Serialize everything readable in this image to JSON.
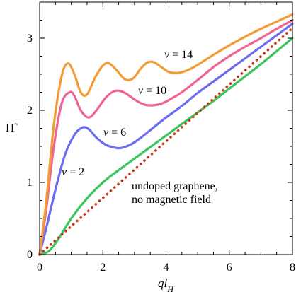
{
  "chart_data": {
    "type": "line",
    "xlabel": "ql_H",
    "xlabel_main": "ql",
    "xlabel_sub": "H",
    "ylabel": "Π̃",
    "xlim": [
      0,
      8
    ],
    "ylim": [
      0,
      3.5
    ],
    "xticks": [
      0,
      2,
      4,
      6,
      8
    ],
    "yticks": [
      0,
      1,
      2,
      3
    ],
    "x_tick_labels": [
      "0",
      "2",
      "4",
      "6",
      "8"
    ],
    "y_tick_labels": [
      "0",
      "1",
      "2",
      "3"
    ],
    "grid": false,
    "legend": "none",
    "series": [
      {
        "name": "ν = 14",
        "label_var": "ν",
        "label_eq": "= 14",
        "color": "#f39b35",
        "style": "solid",
        "x": [
          0,
          0.2,
          0.45,
          0.7,
          0.9,
          1.1,
          1.3,
          1.5,
          1.75,
          2.0,
          2.2,
          2.45,
          2.7,
          2.95,
          3.2,
          3.4,
          3.6,
          3.85,
          4.1,
          4.4,
          4.7,
          5.0,
          5.5,
          6.0,
          6.5,
          7.0,
          7.5,
          8.0
        ],
        "y": [
          0,
          0.7,
          1.8,
          2.48,
          2.65,
          2.5,
          2.25,
          2.22,
          2.45,
          2.62,
          2.65,
          2.55,
          2.43,
          2.44,
          2.58,
          2.66,
          2.67,
          2.6,
          2.53,
          2.52,
          2.56,
          2.63,
          2.77,
          2.9,
          3.02,
          3.13,
          3.23,
          3.33
        ]
      },
      {
        "name": "ν = 10",
        "label_var": "ν",
        "label_eq": "= 10",
        "color": "#f06392",
        "style": "solid",
        "x": [
          0,
          0.2,
          0.45,
          0.7,
          0.95,
          1.1,
          1.3,
          1.55,
          1.8,
          2.1,
          2.4,
          2.7,
          3.0,
          3.3,
          3.6,
          3.9,
          4.2,
          4.5,
          5.0,
          5.5,
          6.0,
          6.5,
          7.0,
          7.5,
          8.0
        ],
        "y": [
          0,
          0.6,
          1.5,
          2.1,
          2.25,
          2.2,
          2.0,
          1.9,
          2.0,
          2.18,
          2.27,
          2.24,
          2.15,
          2.08,
          2.07,
          2.1,
          2.17,
          2.25,
          2.42,
          2.6,
          2.75,
          2.88,
          3.0,
          3.13,
          3.25
        ]
      },
      {
        "name": "ν = 6",
        "label_var": "ν",
        "label_eq": "= 6",
        "color": "#6b6cf2",
        "style": "solid",
        "x": [
          0,
          0.2,
          0.5,
          0.8,
          1.1,
          1.35,
          1.55,
          1.8,
          2.1,
          2.4,
          2.6,
          2.9,
          3.2,
          3.6,
          4.0,
          4.5,
          5.0,
          5.5,
          6.0,
          6.5,
          7.0,
          7.5,
          8.0
        ],
        "y": [
          0,
          0.35,
          0.9,
          1.38,
          1.66,
          1.76,
          1.74,
          1.62,
          1.52,
          1.48,
          1.48,
          1.53,
          1.62,
          1.76,
          1.9,
          2.06,
          2.24,
          2.4,
          2.56,
          2.72,
          2.88,
          3.04,
          3.2
        ]
      },
      {
        "name": "ν = 2",
        "label_var": "ν",
        "label_eq": "= 2",
        "color": "#3cc55d",
        "style": "solid",
        "x": [
          0,
          0.3,
          0.6,
          1.0,
          1.5,
          2.0,
          2.5,
          3.0,
          3.5,
          4.0,
          4.5,
          5.0,
          5.5,
          6.0,
          6.5,
          7.0,
          7.5,
          8.0
        ],
        "y": [
          0,
          0.05,
          0.22,
          0.5,
          0.78,
          1.0,
          1.17,
          1.33,
          1.49,
          1.65,
          1.81,
          1.97,
          2.13,
          2.3,
          2.47,
          2.64,
          2.82,
          3.0
        ]
      },
      {
        "name": "undoped graphene, no magnetic field",
        "label_lines": [
          "undoped graphene,",
          "no magnetic field"
        ],
        "color": "#c8361f",
        "style": "dotted",
        "x": [
          0,
          8
        ],
        "y": [
          0,
          3.14
        ]
      }
    ]
  }
}
